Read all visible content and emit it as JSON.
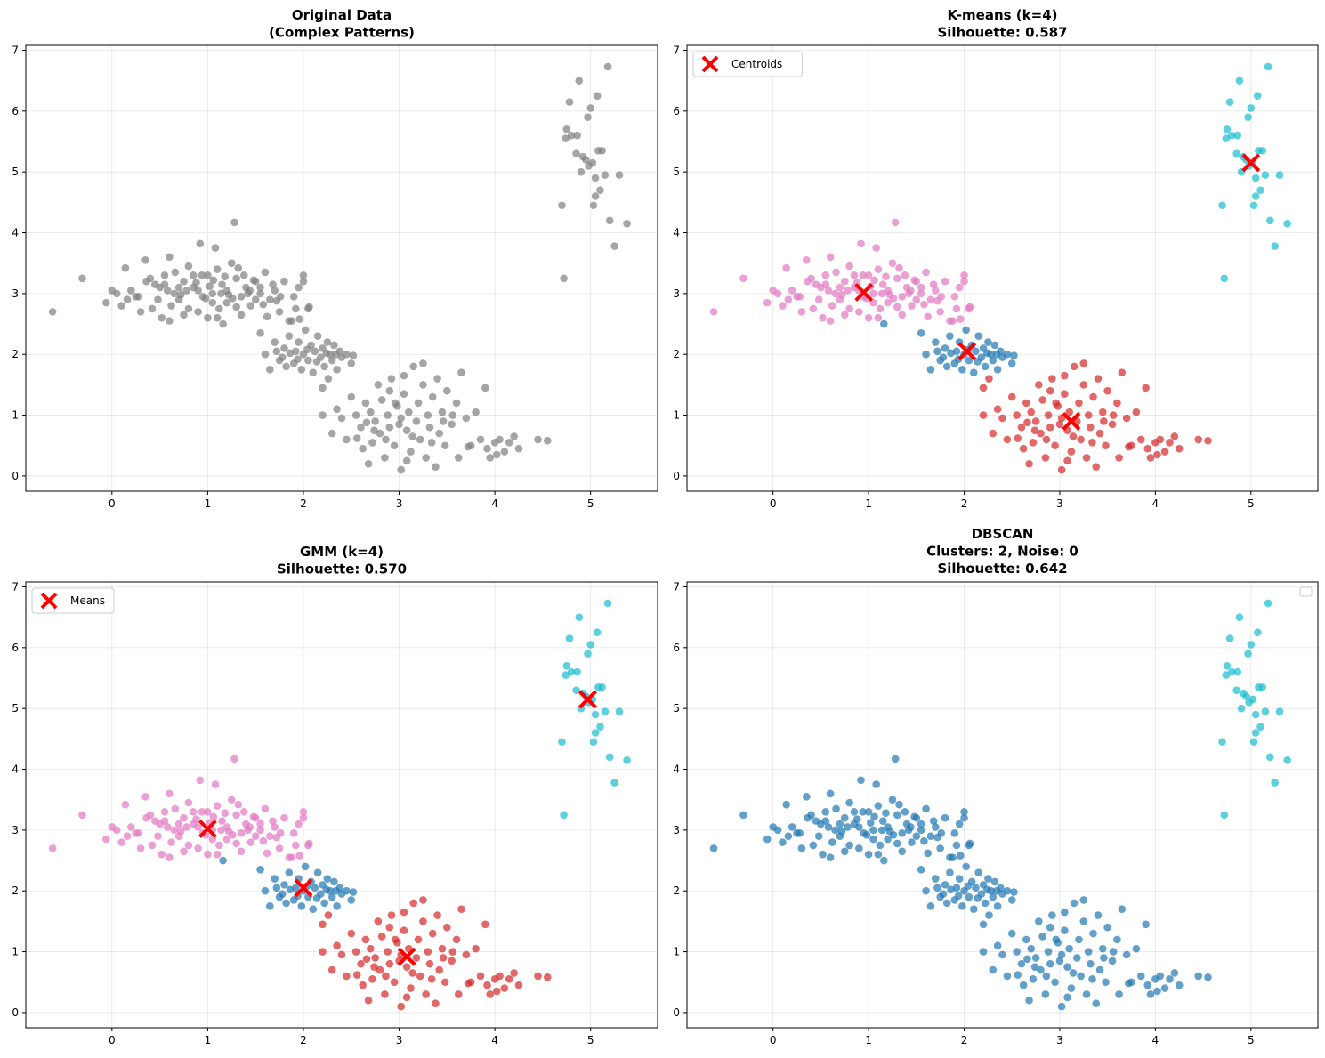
{
  "figure": {
    "background": "#ffffff"
  },
  "chart_data": [
    {
      "type": "scatter",
      "title_lines": [
        "Original Data",
        "(Complex Patterns)"
      ],
      "xlabel": "",
      "ylabel": "",
      "xlim": [
        -0.9,
        5.7
      ],
      "ylim": [
        -0.25,
        7.08
      ],
      "xticks": [
        "0",
        "1",
        "2",
        "3",
        "4",
        "5"
      ],
      "yticks": [
        "0",
        "1",
        "2",
        "3",
        "4",
        "5",
        "6",
        "7"
      ],
      "grid": true,
      "legend": null,
      "point_color": "#7f7f7f",
      "centers": []
    },
    {
      "type": "scatter",
      "title_lines": [
        "K-means (k=4)",
        "Silhouette: 0.587"
      ],
      "xlabel": "",
      "ylabel": "",
      "xlim": [
        -0.9,
        5.7
      ],
      "ylim": [
        -0.25,
        7.08
      ],
      "xticks": [
        "0",
        "1",
        "2",
        "3",
        "4",
        "5"
      ],
      "yticks": [
        "0",
        "1",
        "2",
        "3",
        "4",
        "5",
        "6",
        "7"
      ],
      "grid": true,
      "legend": {
        "label": "Centroids",
        "position": "upper-left"
      },
      "split": "four",
      "colors": {
        "top_left": "#e377c2",
        "mid": "#1f77b4",
        "bottom": "#d62728",
        "right": "#17becf"
      },
      "centers": [
        {
          "x": 0.95,
          "y": 3.02
        },
        {
          "x": 2.03,
          "y": 2.05
        },
        {
          "x": 3.12,
          "y": 0.9
        },
        {
          "x": 5.0,
          "y": 5.15
        }
      ]
    },
    {
      "type": "scatter",
      "title_lines": [
        "GMM (k=4)",
        "Silhouette: 0.570"
      ],
      "xlabel": "",
      "ylabel": "",
      "xlim": [
        -0.9,
        5.7
      ],
      "ylim": [
        -0.25,
        7.08
      ],
      "xticks": [
        "0",
        "1",
        "2",
        "3",
        "4",
        "5"
      ],
      "yticks": [
        "0",
        "1",
        "2",
        "3",
        "4",
        "5",
        "6",
        "7"
      ],
      "grid": true,
      "legend": {
        "label": "Means",
        "position": "upper-left"
      },
      "split": "four",
      "colors": {
        "top_left": "#e377c2",
        "mid": "#1f77b4",
        "bottom": "#d62728",
        "right": "#17becf"
      },
      "centers": [
        {
          "x": 1.0,
          "y": 3.02
        },
        {
          "x": 2.0,
          "y": 2.05
        },
        {
          "x": 3.08,
          "y": 0.92
        },
        {
          "x": 4.97,
          "y": 5.15
        }
      ]
    },
    {
      "type": "scatter",
      "title_lines": [
        "DBSCAN",
        "Clusters: 2, Noise: 0",
        "Silhouette: 0.642"
      ],
      "xlabel": "",
      "ylabel": "",
      "xlim": [
        -0.9,
        5.7
      ],
      "ylim": [
        -0.25,
        7.08
      ],
      "xticks": [
        "0",
        "1",
        "2",
        "3",
        "4",
        "5"
      ],
      "yticks": [
        "0",
        "1",
        "2",
        "3",
        "4",
        "5",
        "6",
        "7"
      ],
      "grid": true,
      "legend": {
        "label": "",
        "position": "upper-right"
      },
      "split": "two",
      "colors": {
        "main": "#1f77b4",
        "right": "#17becf"
      },
      "centers": []
    }
  ],
  "points": [
    [
      -0.62,
      2.7
    ],
    [
      -0.31,
      3.25
    ],
    [
      -0.06,
      2.85
    ],
    [
      0.0,
      3.05
    ],
    [
      0.05,
      3.0
    ],
    [
      0.14,
      3.42
    ],
    [
      0.2,
      3.05
    ],
    [
      0.25,
      2.95
    ],
    [
      0.1,
      2.8
    ],
    [
      0.3,
      2.7
    ],
    [
      0.35,
      3.55
    ],
    [
      0.4,
      3.25
    ],
    [
      0.45,
      3.15
    ],
    [
      0.5,
      3.1
    ],
    [
      0.55,
      3.3
    ],
    [
      0.6,
      3.6
    ],
    [
      0.65,
      3.0
    ],
    [
      0.7,
      2.9
    ],
    [
      0.75,
      3.2
    ],
    [
      0.8,
      3.45
    ],
    [
      0.85,
      3.1
    ],
    [
      0.9,
      3.05
    ],
    [
      0.92,
      3.82
    ],
    [
      0.95,
      2.95
    ],
    [
      1.0,
      3.3
    ],
    [
      1.05,
      2.85
    ],
    [
      1.08,
      3.75
    ],
    [
      1.1,
      2.6
    ],
    [
      1.15,
      3.15
    ],
    [
      1.2,
      3.05
    ],
    [
      1.25,
      3.5
    ],
    [
      1.28,
      4.17
    ],
    [
      1.3,
      3.25
    ],
    [
      1.35,
      2.95
    ],
    [
      1.4,
      3.1
    ],
    [
      1.45,
      2.8
    ],
    [
      1.5,
      3.2
    ],
    [
      1.55,
      3.0
    ],
    [
      1.6,
      3.35
    ],
    [
      1.65,
      2.9
    ],
    [
      1.7,
      3.05
    ],
    [
      1.75,
      2.7
    ],
    [
      1.8,
      3.2
    ],
    [
      1.85,
      2.55
    ],
    [
      1.9,
      2.95
    ],
    [
      1.95,
      3.1
    ],
    [
      2.0,
      3.3
    ],
    [
      2.05,
      2.75
    ],
    [
      0.6,
      2.55
    ],
    [
      0.7,
      3.1
    ],
    [
      0.8,
      2.75
    ],
    [
      0.85,
      3.3
    ],
    [
      1.0,
      2.6
    ],
    [
      1.05,
      3.0
    ],
    [
      1.1,
      3.4
    ],
    [
      1.2,
      2.85
    ],
    [
      1.35,
      2.65
    ],
    [
      1.5,
      2.9
    ],
    [
      1.55,
      3.1
    ],
    [
      0.48,
      2.9
    ],
    [
      0.52,
      2.6
    ],
    [
      0.58,
      3.05
    ],
    [
      0.62,
      2.8
    ],
    [
      0.75,
      2.65
    ],
    [
      0.88,
      3.18
    ],
    [
      0.98,
      2.92
    ],
    [
      1.02,
      3.12
    ],
    [
      1.12,
      2.75
    ],
    [
      1.18,
      3.28
    ],
    [
      1.22,
      2.98
    ],
    [
      1.32,
      3.42
    ],
    [
      1.42,
      3.0
    ],
    [
      1.48,
      3.22
    ],
    [
      1.58,
      2.82
    ],
    [
      1.68,
      3.15
    ],
    [
      1.72,
      2.88
    ],
    [
      0.66,
      3.35
    ],
    [
      0.78,
      3.05
    ],
    [
      0.94,
      3.3
    ],
    [
      1.16,
      2.5
    ],
    [
      1.26,
      2.92
    ],
    [
      1.38,
      3.3
    ],
    [
      0.42,
      2.75
    ],
    [
      0.28,
      2.95
    ],
    [
      0.36,
      3.2
    ],
    [
      0.16,
      2.9
    ],
    [
      1.62,
      2.62
    ],
    [
      1.76,
      2.95
    ],
    [
      1.92,
      2.75
    ],
    [
      0.72,
      2.98
    ],
    [
      1.06,
      3.22
    ],
    [
      1.3,
      2.78
    ],
    [
      1.44,
      3.05
    ],
    [
      0.9,
      2.7
    ],
    [
      0.55,
      3.15
    ],
    [
      1.14,
      3.0
    ],
    [
      1.55,
      2.35
    ],
    [
      1.6,
      2.0
    ],
    [
      1.65,
      1.75
    ],
    [
      1.7,
      2.2
    ],
    [
      1.75,
      1.9
    ],
    [
      1.8,
      2.1
    ],
    [
      1.82,
      1.8
    ],
    [
      1.85,
      2.3
    ],
    [
      1.88,
      2.55
    ],
    [
      1.9,
      1.85
    ],
    [
      1.92,
      2.05
    ],
    [
      1.95,
      2.2
    ],
    [
      1.98,
      1.75
    ],
    [
      2.0,
      2.0
    ],
    [
      2.02,
      2.4
    ],
    [
      2.05,
      1.9
    ],
    [
      2.08,
      2.15
    ],
    [
      2.1,
      1.7
    ],
    [
      2.12,
      2.05
    ],
    [
      2.15,
      2.3
    ],
    [
      2.18,
      1.95
    ],
    [
      2.2,
      2.1
    ],
    [
      2.22,
      1.8
    ],
    [
      2.25,
      2.2
    ],
    [
      2.28,
      2.0
    ],
    [
      2.3,
      1.9
    ],
    [
      2.32,
      2.15
    ],
    [
      2.35,
      1.75
    ],
    [
      2.38,
      2.05
    ],
    [
      1.72,
      2.05
    ],
    [
      1.78,
      1.95
    ],
    [
      1.86,
      2.02
    ],
    [
      1.94,
      1.92
    ],
    [
      2.04,
      2.08
    ],
    [
      2.14,
      1.88
    ],
    [
      2.24,
      2.02
    ],
    [
      2.34,
      2.0
    ],
    [
      2.4,
      1.95
    ],
    [
      2.45,
      2.0
    ],
    [
      2.5,
      1.85
    ],
    [
      2.52,
      1.98
    ],
    [
      2.0,
      3.2
    ],
    [
      2.06,
      2.78
    ],
    [
      1.96,
      2.58
    ],
    [
      2.26,
      1.6
    ],
    [
      2.2,
      1.45
    ],
    [
      2.2,
      1.0
    ],
    [
      2.3,
      0.7
    ],
    [
      2.35,
      1.1
    ],
    [
      2.4,
      0.95
    ],
    [
      2.45,
      0.6
    ],
    [
      2.5,
      1.3
    ],
    [
      2.55,
      1.0
    ],
    [
      2.6,
      0.8
    ],
    [
      2.62,
      0.45
    ],
    [
      2.65,
      1.2
    ],
    [
      2.68,
      0.2
    ],
    [
      2.7,
      1.05
    ],
    [
      2.72,
      0.55
    ],
    [
      2.75,
      0.9
    ],
    [
      2.78,
      1.5
    ],
    [
      2.8,
      0.7
    ],
    [
      2.82,
      1.25
    ],
    [
      2.85,
      0.3
    ],
    [
      2.88,
      1.0
    ],
    [
      2.9,
      0.8
    ],
    [
      2.92,
      1.6
    ],
    [
      2.95,
      0.5
    ],
    [
      2.98,
      1.15
    ],
    [
      3.0,
      0.85
    ],
    [
      3.02,
      0.1
    ],
    [
      3.05,
      1.35
    ],
    [
      3.08,
      0.75
    ],
    [
      3.1,
      1.05
    ],
    [
      3.12,
      0.4
    ],
    [
      3.15,
      1.8
    ],
    [
      3.18,
      0.9
    ],
    [
      3.2,
      1.2
    ],
    [
      3.22,
      0.6
    ],
    [
      3.25,
      1.5
    ],
    [
      3.28,
      0.3
    ],
    [
      3.3,
      1.0
    ],
    [
      3.32,
      0.8
    ],
    [
      3.35,
      1.3
    ],
    [
      3.38,
      0.15
    ],
    [
      3.4,
      1.6
    ],
    [
      3.42,
      0.7
    ],
    [
      3.45,
      1.05
    ],
    [
      3.48,
      0.5
    ],
    [
      3.5,
      1.4
    ],
    [
      3.55,
      0.85
    ],
    [
      3.6,
      1.2
    ],
    [
      3.62,
      0.3
    ],
    [
      3.65,
      1.7
    ],
    [
      3.7,
      0.95
    ],
    [
      3.75,
      0.5
    ],
    [
      3.8,
      1.05
    ],
    [
      3.85,
      0.6
    ],
    [
      3.9,
      1.45
    ],
    [
      3.92,
      0.45
    ],
    [
      3.95,
      0.3
    ],
    [
      4.0,
      0.55
    ],
    [
      4.05,
      0.6
    ],
    [
      4.1,
      0.4
    ],
    [
      4.15,
      0.55
    ],
    [
      4.2,
      0.65
    ],
    [
      4.25,
      0.45
    ],
    [
      4.45,
      0.6
    ],
    [
      4.55,
      0.58
    ],
    [
      2.9,
      1.4
    ],
    [
      3.05,
      1.65
    ],
    [
      3.25,
      1.85
    ],
    [
      2.96,
      1.2
    ],
    [
      3.14,
      0.65
    ],
    [
      3.02,
      0.95
    ],
    [
      2.86,
      0.6
    ],
    [
      3.34,
      0.55
    ],
    [
      3.56,
      1.0
    ],
    [
      2.74,
      0.75
    ],
    [
      3.08,
      0.25
    ],
    [
      2.56,
      0.62
    ],
    [
      2.66,
      0.88
    ],
    [
      3.46,
      0.9
    ],
    [
      3.72,
      0.48
    ],
    [
      4.02,
      0.35
    ],
    [
      4.7,
      4.45
    ],
    [
      4.72,
      3.25
    ],
    [
      4.75,
      5.7
    ],
    [
      4.78,
      6.15
    ],
    [
      4.8,
      5.6
    ],
    [
      4.85,
      5.3
    ],
    [
      4.88,
      6.5
    ],
    [
      4.9,
      5.0
    ],
    [
      4.92,
      5.25
    ],
    [
      4.95,
      5.2
    ],
    [
      4.97,
      5.9
    ],
    [
      5.0,
      6.05
    ],
    [
      5.02,
      5.15
    ],
    [
      5.03,
      4.45
    ],
    [
      5.05,
      4.6
    ],
    [
      5.07,
      6.25
    ],
    [
      5.08,
      5.35
    ],
    [
      5.1,
      4.7
    ],
    [
      5.12,
      5.35
    ],
    [
      5.15,
      4.95
    ],
    [
      5.18,
      6.73
    ],
    [
      5.2,
      4.2
    ],
    [
      5.25,
      3.78
    ],
    [
      5.3,
      4.95
    ],
    [
      5.38,
      4.15
    ],
    [
      4.74,
      5.55
    ],
    [
      4.98,
      5.1
    ],
    [
      5.05,
      4.9
    ],
    [
      4.86,
      5.6
    ]
  ]
}
